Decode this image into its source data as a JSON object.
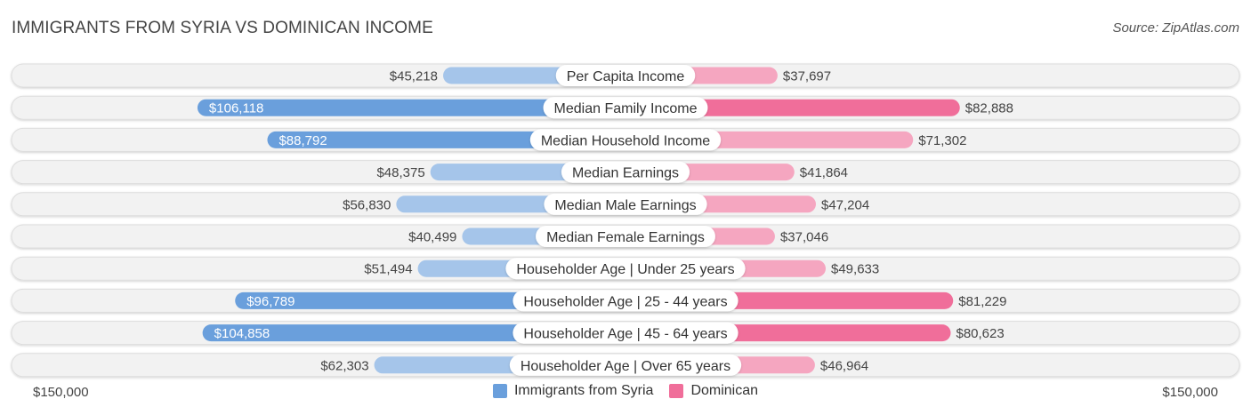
{
  "title": "IMMIGRANTS FROM SYRIA VS DOMINICAN INCOME",
  "source": "Source: ZipAtlas.com",
  "colors": {
    "left_strong": "#6a9fdc",
    "left_light": "#a5c5ea",
    "right_strong": "#f06e9a",
    "right_light": "#f5a6c0"
  },
  "axis": {
    "left_label": "$150,000",
    "right_label": "$150,000"
  },
  "legend": {
    "left": "Immigrants from Syria",
    "right": "Dominican"
  },
  "chart_data": {
    "type": "bar",
    "orientation": "diverging-horizontal",
    "title": "IMMIGRANTS FROM SYRIA VS DOMINICAN INCOME",
    "xlim": [
      0,
      150000
    ],
    "categories": [
      "Per Capita Income",
      "Median Family Income",
      "Median Household Income",
      "Median Earnings",
      "Median Male Earnings",
      "Median Female Earnings",
      "Householder Age | Under 25 years",
      "Householder Age | 25 - 44 years",
      "Householder Age | 45 - 64 years",
      "Householder Age | Over 65 years"
    ],
    "series": [
      {
        "name": "Immigrants from Syria",
        "values": [
          45218,
          106118,
          88792,
          48375,
          56830,
          40499,
          51494,
          96789,
          104858,
          62303
        ],
        "labels": [
          "$45,218",
          "$106,118",
          "$88,792",
          "$48,375",
          "$56,830",
          "$40,499",
          "$51,494",
          "$96,789",
          "$104,858",
          "$62,303"
        ]
      },
      {
        "name": "Dominican",
        "values": [
          37697,
          82888,
          71302,
          41864,
          47204,
          37046,
          49633,
          81229,
          80623,
          46964
        ],
        "labels": [
          "$37,697",
          "$82,888",
          "$71,302",
          "$41,864",
          "$47,204",
          "$37,046",
          "$49,633",
          "$81,229",
          "$80,623",
          "$46,964"
        ]
      }
    ]
  }
}
